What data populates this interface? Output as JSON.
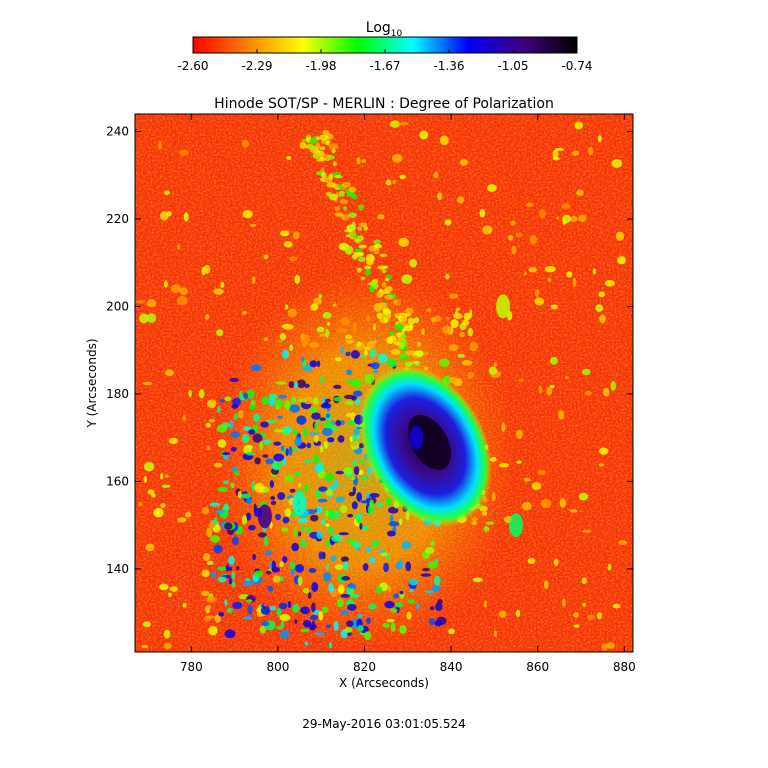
{
  "colorbar": {
    "label": "Log",
    "label_sub": "10",
    "ticks": [
      "-2.60",
      "-2.29",
      "-1.98",
      "-1.67",
      "-1.36",
      "-1.05",
      "-0.74"
    ],
    "range": [
      -2.6,
      -0.74
    ],
    "colormap": [
      "#ff0000",
      "#ff8000",
      "#ffff00",
      "#00ff00",
      "#00ffff",
      "#0000ff",
      "#400080",
      "#000000"
    ]
  },
  "chart_data": {
    "type": "heatmap",
    "title": "Hinode SOT/SP - MERLIN : Degree of Polarization",
    "xlabel": "X (Arcseconds)",
    "ylabel": "Y (Arcseconds)",
    "xlim": [
      767,
      882
    ],
    "ylim": [
      121,
      244
    ],
    "x_ticks": [
      780,
      800,
      820,
      840,
      860,
      880
    ],
    "y_ticks": [
      140,
      160,
      180,
      200,
      220,
      240
    ],
    "z_unit": "Log10",
    "zlim": [
      -2.6,
      -0.74
    ],
    "features": [
      {
        "kind": "sunspot-core",
        "x": 835,
        "y": 168,
        "value": -0.8
      },
      {
        "kind": "penumbra",
        "x": 832,
        "y": 170,
        "value": -1.2
      },
      {
        "kind": "plage",
        "x": 805,
        "y": 155,
        "value": -1.6
      },
      {
        "kind": "plage",
        "x": 797,
        "y": 152,
        "value": -1.05
      },
      {
        "kind": "network",
        "x": 852,
        "y": 200,
        "value": -2.0
      },
      {
        "kind": "network",
        "x": 855,
        "y": 150,
        "value": -1.7
      }
    ]
  },
  "footer": {
    "timestamp": "29-May-2016 03:01:05.524"
  }
}
